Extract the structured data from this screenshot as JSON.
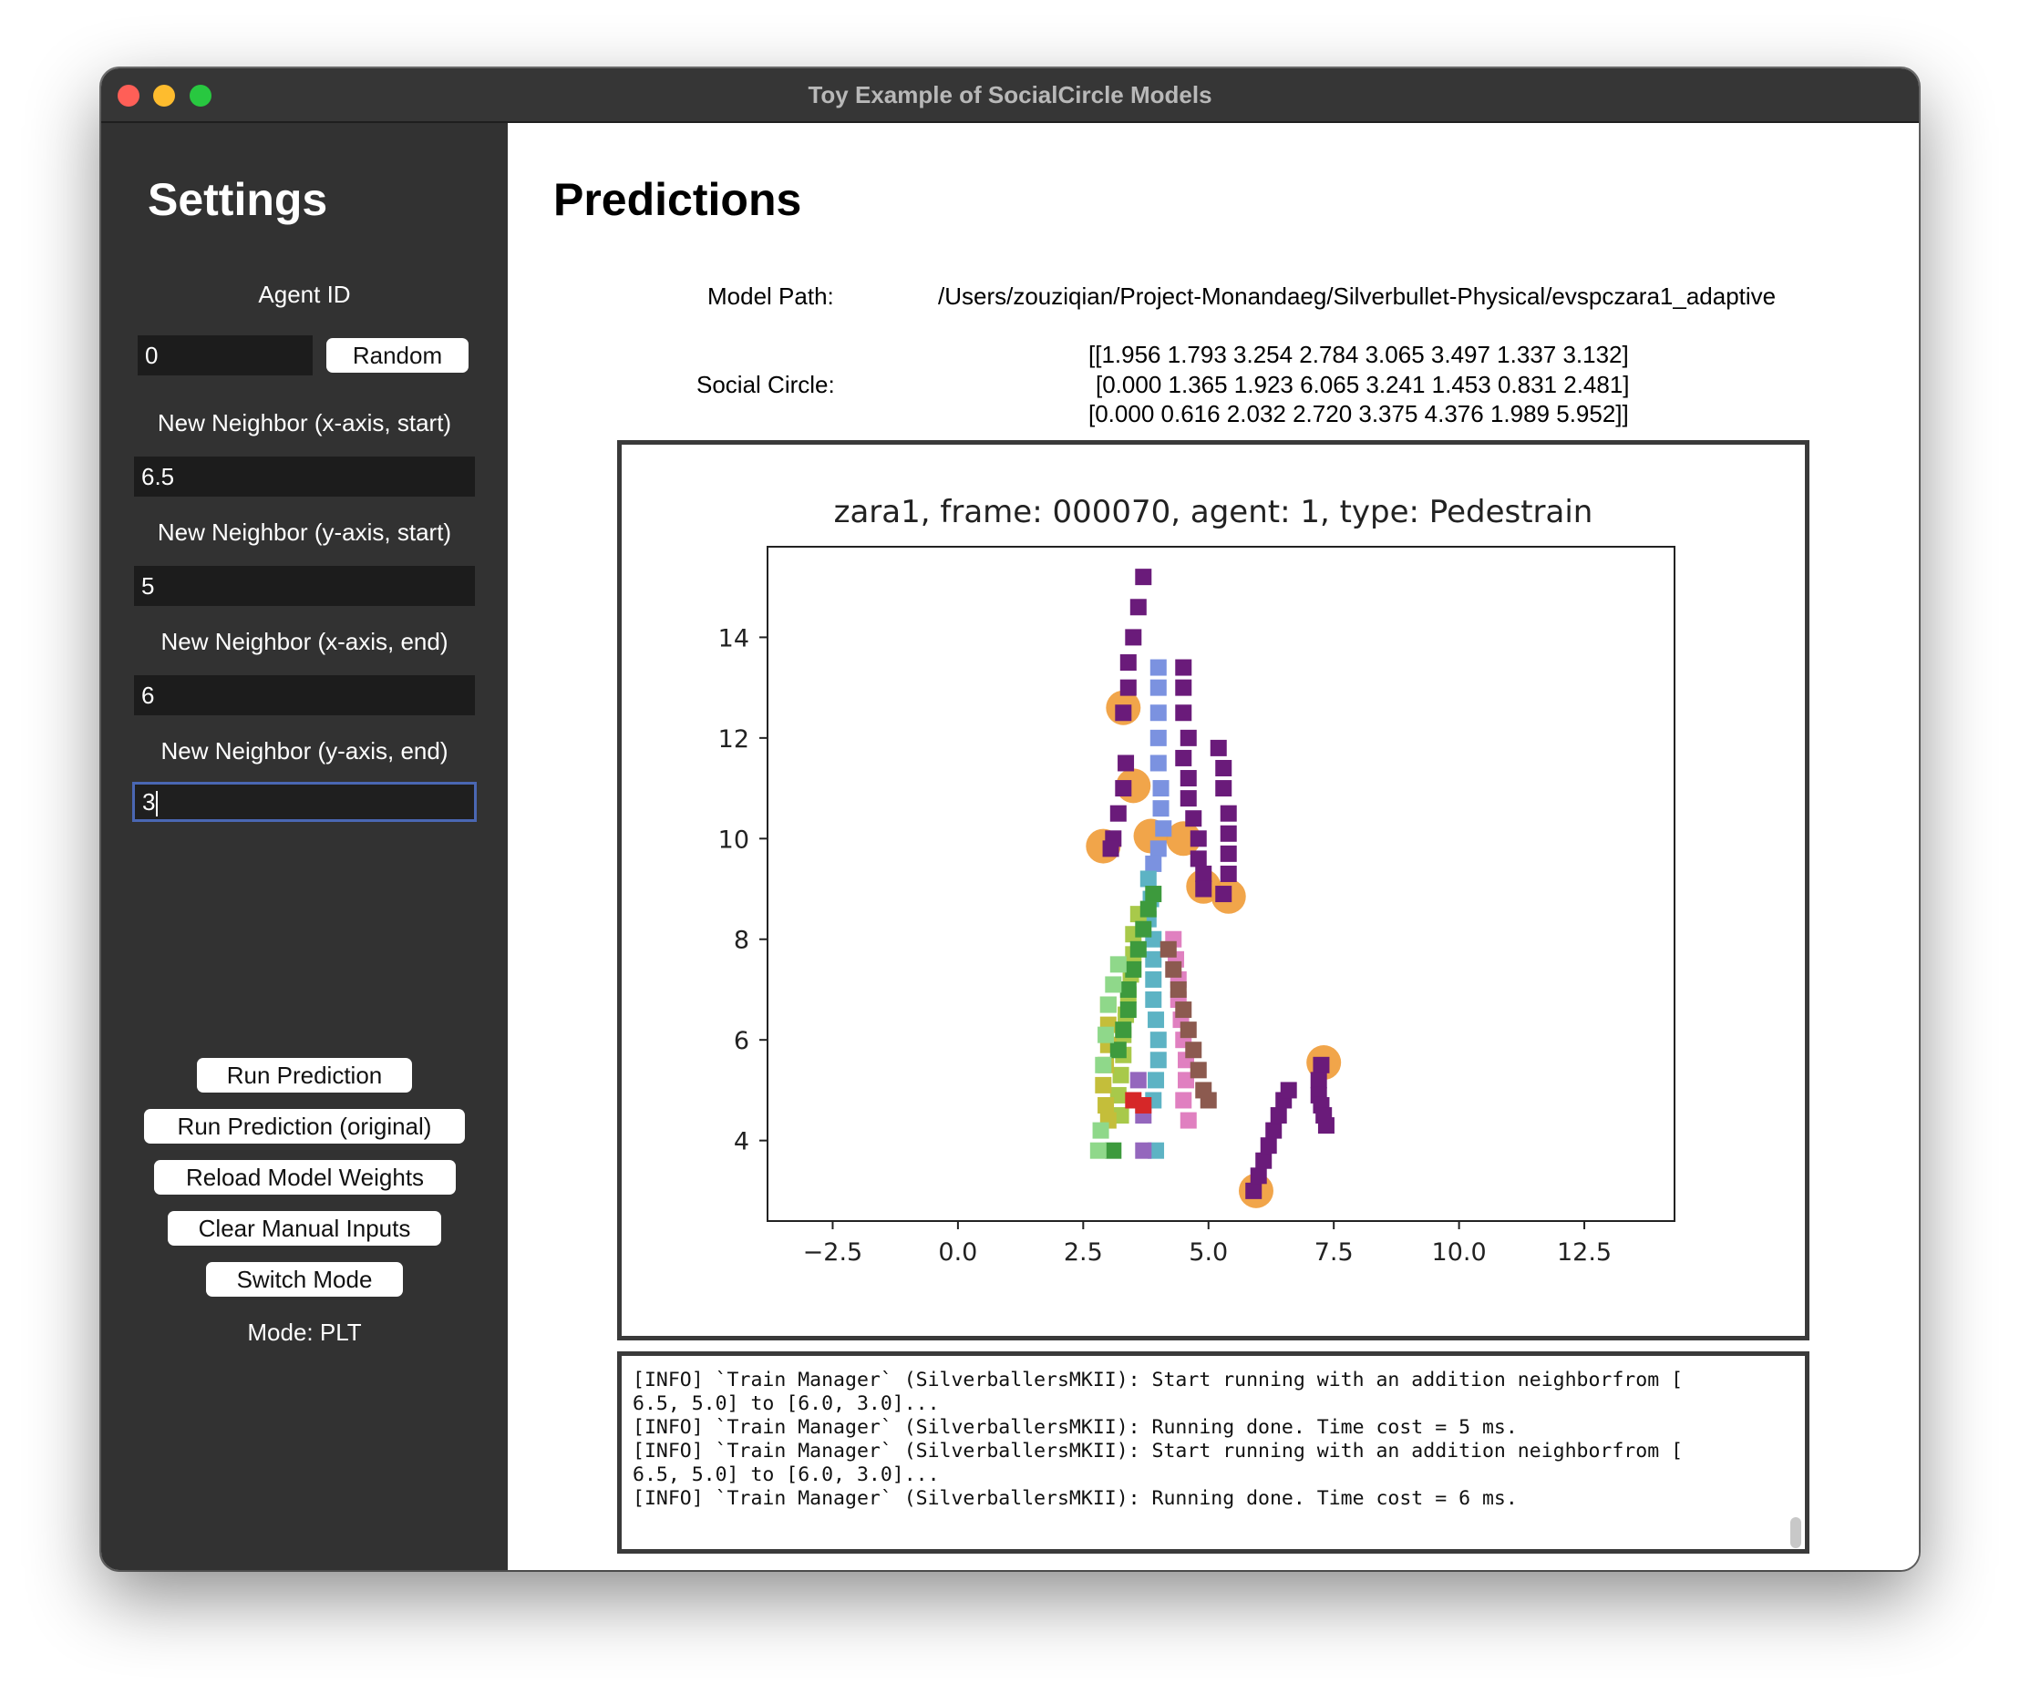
{
  "window": {
    "title": "Toy Example of SocialCircle Models"
  },
  "sidebar": {
    "title": "Settings",
    "agent_id_label": "Agent ID",
    "agent_id_value": "0",
    "random_label": "Random",
    "fields": [
      {
        "label": "New Neighbor (x-axis, start)",
        "value": "6.5"
      },
      {
        "label": "New Neighbor (y-axis, start)",
        "value": "5"
      },
      {
        "label": "New Neighbor (x-axis, end)",
        "value": "6"
      },
      {
        "label": "New Neighbor (y-axis, end)",
        "value": "3"
      }
    ],
    "buttons": {
      "run": "Run Prediction",
      "run_original": "Run Prediction (original)",
      "reload": "Reload Model Weights",
      "clear": "Clear Manual Inputs",
      "switch": "Switch Mode"
    },
    "mode_text": "Mode: PLT"
  },
  "main": {
    "title": "Predictions",
    "model_path_label": "Model Path:",
    "model_path_value": "/Users/zouziqian/Project-Monandaeg/Silverbullet-Physical/evspczara1_adaptive",
    "social_circle_label": "Social Circle:",
    "social_circle_lines": [
      "[[1.956 1.793 3.254 2.784 3.065 3.497 1.337 3.132]",
      "[0.000 1.365 1.923 6.065 3.241 1.453 0.831 2.481]",
      "[0.000 0.616 2.032 2.720 3.375 4.376 1.989 5.952]]"
    ],
    "log_lines": [
      "[INFO] `Train Manager` (SilverballersMKII): Start running with an addition neighborfrom [",
      "6.5, 5.0] to [6.0, 3.0]...",
      "[INFO] `Train Manager` (SilverballersMKII): Running done. Time cost = 5 ms.",
      "[INFO] `Train Manager` (SilverballersMKII): Start running with an addition neighborfrom [",
      "6.5, 5.0] to [6.0, 3.0]...",
      "[INFO] `Train Manager` (SilverballersMKII): Running done. Time cost = 6 ms."
    ]
  },
  "chart_data": {
    "type": "scatter",
    "title": "zara1, frame: 000070, agent: 1, type: Pedestrain",
    "xlabel": "",
    "ylabel": "",
    "xlim": [
      -3.8,
      14.3
    ],
    "ylim": [
      2.4,
      15.8
    ],
    "xticks": [
      "−2.5",
      "0.0",
      "2.5",
      "5.0",
      "7.5",
      "10.0",
      "12.5"
    ],
    "xtick_values": [
      -2.5,
      0.0,
      2.5,
      5.0,
      7.5,
      10.0,
      12.5
    ],
    "yticks": [
      "4",
      "6",
      "8",
      "10",
      "12",
      "14"
    ],
    "ytick_values": [
      4,
      6,
      8,
      10,
      12,
      14
    ],
    "grid": false,
    "series": [
      {
        "color": "#6a1b7a",
        "marker": "square",
        "x": [
          3.7,
          3.6,
          3.5,
          3.4,
          3.4,
          3.3,
          3.35,
          3.3,
          3.2,
          3.1,
          3.05
        ],
        "y": [
          15.2,
          14.6,
          14.0,
          13.5,
          13.0,
          12.5,
          11.5,
          11.0,
          10.5,
          10.0,
          9.8
        ]
      },
      {
        "color": "#6a1b7a",
        "marker": "square",
        "x": [
          4.5,
          4.5,
          4.5,
          4.6,
          4.5,
          4.6,
          4.6,
          4.7,
          4.8,
          4.8,
          4.9,
          4.9
        ],
        "y": [
          13.4,
          13.0,
          12.5,
          12.0,
          11.6,
          11.2,
          10.8,
          10.4,
          10.0,
          9.6,
          9.3,
          9.0
        ]
      },
      {
        "color": "#6a1b7a",
        "marker": "square",
        "x": [
          5.2,
          5.3,
          5.3,
          5.4,
          5.4,
          5.4,
          5.4,
          5.3
        ],
        "y": [
          11.8,
          11.4,
          11.0,
          10.5,
          10.1,
          9.7,
          9.3,
          8.9
        ]
      },
      {
        "color": "#6a1b7a",
        "marker": "square",
        "x": [
          5.9,
          6.0,
          6.1,
          6.2,
          6.3,
          6.4,
          6.5,
          6.6
        ],
        "y": [
          3.0,
          3.3,
          3.6,
          3.9,
          4.2,
          4.5,
          4.8,
          5.0
        ]
      },
      {
        "color": "#6a1b7a",
        "marker": "square",
        "x": [
          7.25,
          7.2,
          7.2,
          7.25,
          7.3,
          7.35
        ],
        "y": [
          5.5,
          5.2,
          4.9,
          4.7,
          4.5,
          4.3
        ]
      },
      {
        "color": "#7b92e0",
        "marker": "square",
        "x": [
          4.0,
          4.0,
          4.0,
          4.0,
          4.0,
          4.05,
          4.05,
          4.1,
          4.0,
          3.9
        ],
        "y": [
          13.4,
          13.0,
          12.5,
          12.0,
          11.5,
          11.0,
          10.6,
          10.2,
          9.8,
          9.5
        ]
      },
      {
        "color": "#5db3c4",
        "marker": "square",
        "x": [
          3.8,
          3.85,
          3.8,
          3.9,
          3.9,
          3.9,
          3.9,
          3.95,
          4.0,
          4.0,
          3.95,
          3.9,
          3.95
        ],
        "y": [
          9.2,
          8.8,
          8.4,
          8.0,
          7.6,
          7.2,
          6.8,
          6.4,
          6.0,
          5.6,
          5.2,
          4.8,
          3.8
        ]
      },
      {
        "color": "#a8c94a",
        "marker": "square",
        "x": [
          3.6,
          3.5,
          3.5,
          3.45,
          3.4,
          3.35,
          3.3,
          3.3,
          3.25,
          3.2,
          3.25
        ],
        "y": [
          8.5,
          8.1,
          7.7,
          7.3,
          6.9,
          6.5,
          6.1,
          5.7,
          5.3,
          4.9,
          4.5
        ]
      },
      {
        "color": "#c4be3a",
        "marker": "square",
        "x": [
          3.0,
          3.0,
          3.0,
          2.95,
          2.9,
          2.95,
          3.0
        ],
        "y": [
          6.7,
          6.3,
          5.9,
          5.5,
          5.1,
          4.7,
          4.4
        ]
      },
      {
        "color": "#3d9a3d",
        "marker": "square",
        "x": [
          3.9,
          3.8,
          3.7,
          3.6,
          3.5,
          3.4,
          3.4,
          3.3,
          3.2,
          3.1
        ],
        "y": [
          8.9,
          8.6,
          8.2,
          7.8,
          7.4,
          7.0,
          6.6,
          6.2,
          5.8,
          3.8
        ]
      },
      {
        "color": "#8fd88a",
        "marker": "square",
        "x": [
          3.2,
          3.1,
          3.0,
          2.95,
          2.9,
          2.85,
          2.8
        ],
        "y": [
          7.5,
          7.1,
          6.7,
          6.1,
          5.5,
          4.2,
          3.8
        ]
      },
      {
        "color": "#e080c0",
        "marker": "square",
        "x": [
          4.3,
          4.35,
          4.4,
          4.4,
          4.45,
          4.5,
          4.55,
          4.55,
          4.5,
          4.6
        ],
        "y": [
          8.0,
          7.6,
          7.2,
          6.8,
          6.4,
          6.0,
          5.6,
          5.2,
          4.8,
          4.4
        ]
      },
      {
        "color": "#8c5a4f",
        "marker": "square",
        "x": [
          4.2,
          4.3,
          4.4,
          4.5,
          4.6,
          4.7,
          4.8,
          4.9,
          5.0
        ],
        "y": [
          7.8,
          7.4,
          7.0,
          6.6,
          6.2,
          5.8,
          5.4,
          5.0,
          4.8
        ]
      },
      {
        "color": "#9467bd",
        "marker": "square",
        "x": [
          3.6,
          3.7,
          3.7
        ],
        "y": [
          5.2,
          4.5,
          3.8
        ]
      },
      {
        "color": "#d62728",
        "marker": "square",
        "x": [
          3.5,
          3.7
        ],
        "y": [
          4.8,
          4.7
        ]
      },
      {
        "color": "#f0a040",
        "marker": "circle",
        "x": [
          3.3,
          3.5,
          2.9,
          3.85,
          4.5,
          4.9,
          5.4,
          5.95,
          7.3
        ],
        "y": [
          12.6,
          11.05,
          9.85,
          10.05,
          10.0,
          9.05,
          8.85,
          3.0,
          5.55
        ]
      }
    ]
  }
}
